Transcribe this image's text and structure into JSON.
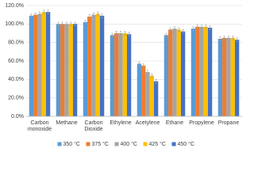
{
  "chart_data": {
    "type": "bar",
    "categories": [
      "Carbon monoxide",
      "Methane",
      "Carbon Dioxide",
      "Ethylene",
      "Acetylene",
      "Ethane",
      "Propylene",
      "Propane"
    ],
    "series": [
      {
        "name": "350 °C",
        "color": "#5b9bd5",
        "values": [
          109,
          100,
          102,
          88,
          57,
          88,
          95,
          84
        ],
        "errors": [
          2,
          2,
          2,
          2,
          2,
          2,
          2,
          2
        ]
      },
      {
        "name": "375 °C",
        "color": "#ed7d31",
        "values": [
          110,
          100,
          108,
          90,
          55,
          94,
          97,
          85
        ],
        "errors": [
          2,
          2,
          2,
          2,
          2,
          2,
          2,
          2
        ]
      },
      {
        "name": "400 °C",
        "color": "#a5a5a5",
        "values": [
          111,
          100,
          110,
          90,
          48,
          95,
          97,
          85
        ],
        "errors": [
          2,
          2,
          2,
          2,
          2,
          2,
          2,
          2
        ]
      },
      {
        "name": "425 °C",
        "color": "#ffc000",
        "values": [
          113,
          100,
          111,
          90,
          44,
          94,
          97,
          85
        ],
        "errors": [
          2,
          2,
          2,
          2,
          2,
          2,
          2,
          2
        ]
      },
      {
        "name": "450 °C",
        "color": "#4472c4",
        "values": [
          113,
          100,
          109,
          89,
          38,
          92,
          96,
          83
        ],
        "errors": [
          2,
          2,
          2,
          2,
          2,
          2,
          2,
          2
        ]
      }
    ],
    "ylim": [
      0,
      120
    ],
    "yticks": [
      {
        "value": 0,
        "label": "0.0%"
      },
      {
        "value": 20,
        "label": "20.0%"
      },
      {
        "value": 40,
        "label": "40.0%"
      },
      {
        "value": 60,
        "label": "60.0%"
      },
      {
        "value": 80,
        "label": "80.0%"
      },
      {
        "value": 100,
        "label": "100.0%"
      },
      {
        "value": 120,
        "label": "120.0%"
      }
    ],
    "grid": true,
    "legend": "bottom"
  }
}
